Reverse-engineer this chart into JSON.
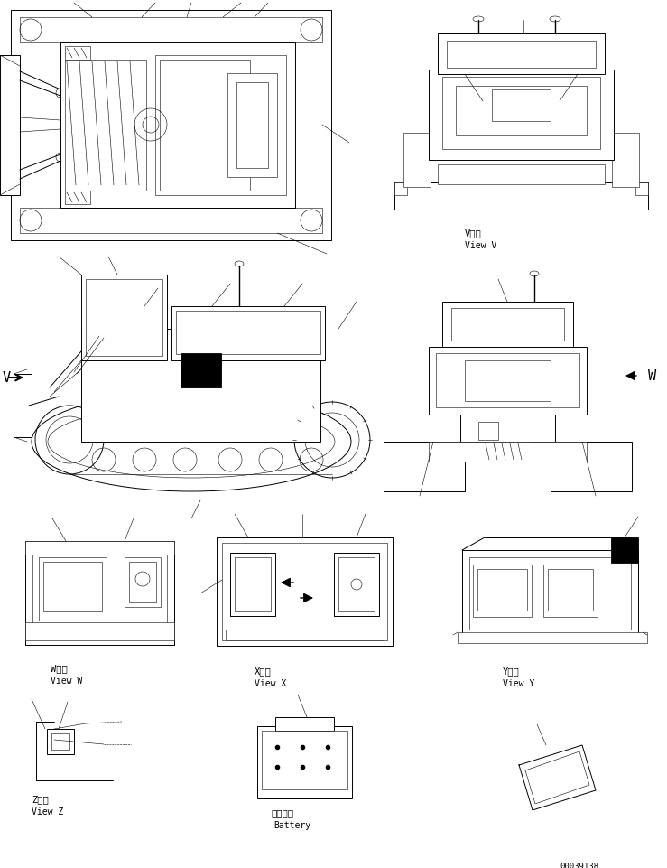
{
  "bg_color": "#ffffff",
  "line_color": "#000000",
  "fig_width": 7.39,
  "fig_height": 9.62,
  "dpi": 100,
  "part_number": "00039138",
  "lw_thin": 0.4,
  "lw_med": 0.7,
  "lw_thick": 1.0,
  "labels": {
    "view_v_jp": "V　視",
    "view_v_en": "View V",
    "view_w_jp": "W　視",
    "view_w_en": "View W",
    "view_x_jp": "X　視",
    "view_x_en": "View X",
    "view_y_jp": "Y　視",
    "view_y_en": "View Y",
    "bat_jp": "バッテリ",
    "bat_en": "Battery",
    "view_z_jp": "Z　視",
    "view_z_en": "View Z",
    "V_arrow": "V",
    "W_arrow": "W"
  }
}
